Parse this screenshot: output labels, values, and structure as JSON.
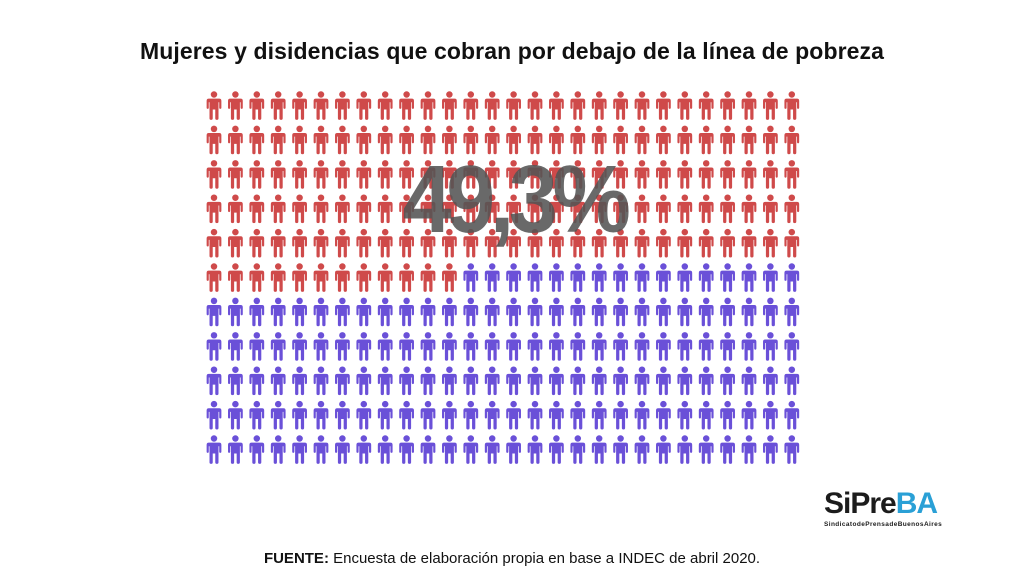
{
  "title": "Mujeres y disidencias que cobran por debajo de la línea de pobreza",
  "big_value": "49,3%",
  "source": {
    "label": "FUENTE:",
    "text": "Encuesta de elaboración propia en base a INDEC de abril 2020."
  },
  "logo": {
    "part1": "Si",
    "part2": "Pre",
    "part3": "BA",
    "tagline": "SindicatodePrensadeBuenosAires"
  },
  "colors": {
    "highlight": "#cf4a4a",
    "rest": "#6a50d8",
    "logo_accent": "#2aa0d6"
  },
  "chart_data": {
    "type": "pictogram",
    "title": "Mujeres y disidencias que cobran por debajo de la línea de pobreza",
    "total_icons": 308,
    "highlighted_icons": 152,
    "highlighted_percent": 49.3,
    "grid": {
      "rows": 11,
      "columns": 28
    },
    "series": [
      {
        "value": 49.3,
        "color": "#cf4a4a"
      },
      {
        "value": 50.7,
        "color": "#6a50d8"
      }
    ]
  }
}
